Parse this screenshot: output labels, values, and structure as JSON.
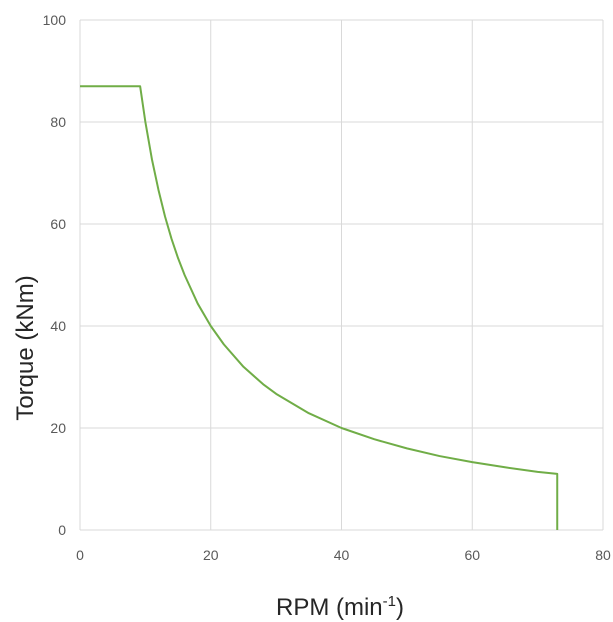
{
  "chart_data": {
    "type": "line",
    "title": "",
    "xlabel": "RPM (min",
    "xlabel_superscript": "-1",
    "xlabel_suffix": ")",
    "ylabel": "Torque (kNm)",
    "xlim": [
      0,
      80
    ],
    "ylim": [
      0,
      100
    ],
    "x_ticks": [
      "0",
      "20",
      "40",
      "60",
      "80"
    ],
    "y_ticks": [
      "0",
      "20",
      "40",
      "60",
      "80",
      "100"
    ],
    "grid": true,
    "legend": "none",
    "series": [
      {
        "color": "#70ad47",
        "x": [
          0,
          9.2,
          10,
          11,
          12,
          13,
          14,
          15,
          16,
          18,
          20,
          22,
          25,
          28,
          30,
          35,
          40,
          45,
          50,
          55,
          60,
          65,
          70,
          73,
          73
        ],
        "values": [
          87,
          87,
          80,
          72.7,
          66.7,
          61.5,
          57.1,
          53.3,
          50,
          44.4,
          40,
          36.4,
          32,
          28.6,
          26.7,
          22.9,
          20,
          17.8,
          16,
          14.5,
          13.3,
          12.3,
          11.4,
          11,
          0
        ]
      }
    ]
  }
}
